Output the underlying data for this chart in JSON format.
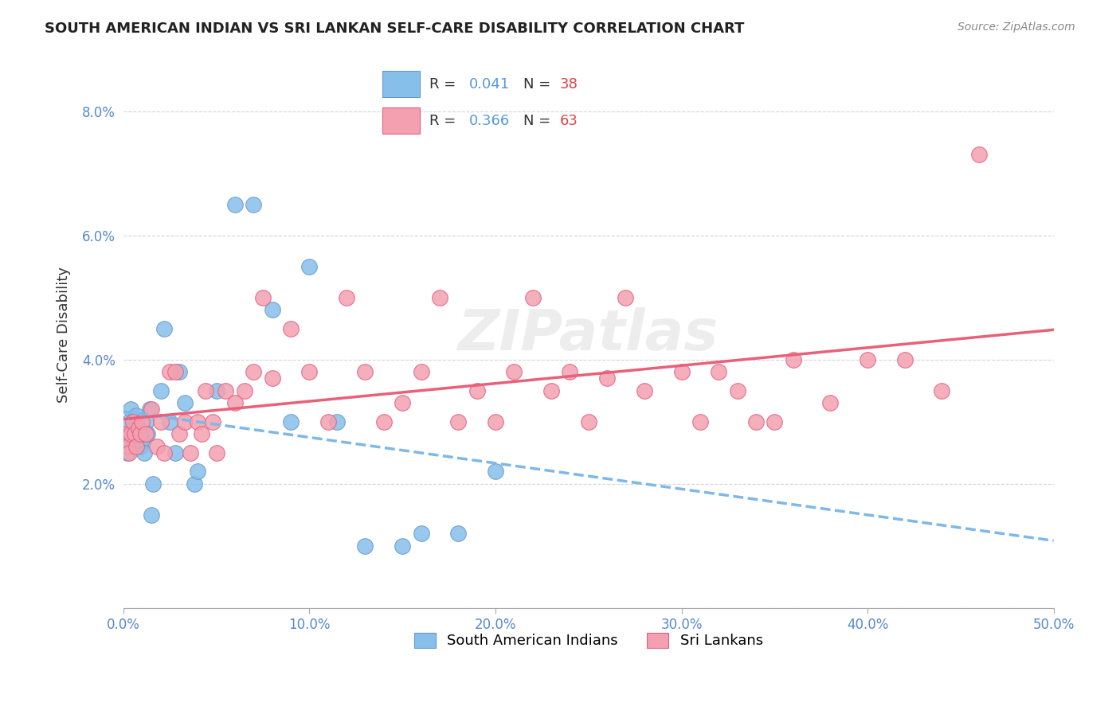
{
  "title": "SOUTH AMERICAN INDIAN VS SRI LANKAN SELF-CARE DISABILITY CORRELATION CHART",
  "source": "Source: ZipAtlas.com",
  "ylabel": "Self-Care Disability",
  "xlabel": "",
  "xlim": [
    0.0,
    0.5
  ],
  "ylim": [
    0.0,
    0.088
  ],
  "xticks": [
    0.0,
    0.1,
    0.2,
    0.3,
    0.4,
    0.5
  ],
  "xticklabels": [
    "0.0%",
    "10.0%",
    "20.0%",
    "30.0%",
    "40.0%",
    "50.0%"
  ],
  "yticks": [
    0.0,
    0.02,
    0.04,
    0.06,
    0.08
  ],
  "yticklabels": [
    "",
    "2.0%",
    "4.0%",
    "6.0%",
    "8.0%"
  ],
  "blue_color": "#87BFEB",
  "blue_edge": "#6699CC",
  "pink_color": "#F4A0B0",
  "pink_edge": "#E06080",
  "trend_blue": "#7EB8E8",
  "trend_pink": "#E8607A",
  "legend_R1": "R = 0.041",
  "legend_N1": "N = 38",
  "legend_R2": "R = 0.366",
  "legend_N2": "N = 63",
  "label1": "South American Indians",
  "label2": "Sri Lankans",
  "watermark": "ZIPatlas",
  "blue_x": [
    0.001,
    0.002,
    0.003,
    0.003,
    0.004,
    0.005,
    0.005,
    0.006,
    0.007,
    0.008,
    0.009,
    0.01,
    0.011,
    0.012,
    0.013,
    0.014,
    0.015,
    0.016,
    0.02,
    0.022,
    0.025,
    0.028,
    0.03,
    0.033,
    0.038,
    0.04,
    0.05,
    0.06,
    0.07,
    0.08,
    0.09,
    0.1,
    0.115,
    0.13,
    0.15,
    0.16,
    0.18,
    0.2
  ],
  "blue_y": [
    0.028,
    0.025,
    0.027,
    0.03,
    0.032,
    0.028,
    0.026,
    0.029,
    0.031,
    0.028,
    0.026,
    0.027,
    0.025,
    0.03,
    0.028,
    0.032,
    0.015,
    0.02,
    0.035,
    0.045,
    0.03,
    0.025,
    0.038,
    0.033,
    0.02,
    0.022,
    0.035,
    0.065,
    0.065,
    0.048,
    0.03,
    0.055,
    0.03,
    0.01,
    0.01,
    0.012,
    0.012,
    0.022
  ],
  "pink_x": [
    0.001,
    0.002,
    0.003,
    0.004,
    0.005,
    0.006,
    0.007,
    0.008,
    0.009,
    0.01,
    0.012,
    0.015,
    0.018,
    0.02,
    0.022,
    0.025,
    0.028,
    0.03,
    0.033,
    0.036,
    0.04,
    0.042,
    0.044,
    0.048,
    0.05,
    0.055,
    0.06,
    0.065,
    0.07,
    0.075,
    0.08,
    0.09,
    0.1,
    0.11,
    0.12,
    0.13,
    0.14,
    0.15,
    0.16,
    0.17,
    0.18,
    0.19,
    0.2,
    0.21,
    0.22,
    0.23,
    0.24,
    0.25,
    0.26,
    0.27,
    0.28,
    0.3,
    0.31,
    0.32,
    0.33,
    0.34,
    0.35,
    0.36,
    0.38,
    0.4,
    0.42,
    0.44,
    0.46
  ],
  "pink_y": [
    0.028,
    0.026,
    0.025,
    0.028,
    0.03,
    0.028,
    0.026,
    0.029,
    0.028,
    0.03,
    0.028,
    0.032,
    0.026,
    0.03,
    0.025,
    0.038,
    0.038,
    0.028,
    0.03,
    0.025,
    0.03,
    0.028,
    0.035,
    0.03,
    0.025,
    0.035,
    0.033,
    0.035,
    0.038,
    0.05,
    0.037,
    0.045,
    0.038,
    0.03,
    0.05,
    0.038,
    0.03,
    0.033,
    0.038,
    0.05,
    0.03,
    0.035,
    0.03,
    0.038,
    0.05,
    0.035,
    0.038,
    0.03,
    0.037,
    0.05,
    0.035,
    0.038,
    0.03,
    0.038,
    0.035,
    0.03,
    0.03,
    0.04,
    0.033,
    0.04,
    0.04,
    0.035,
    0.073
  ]
}
